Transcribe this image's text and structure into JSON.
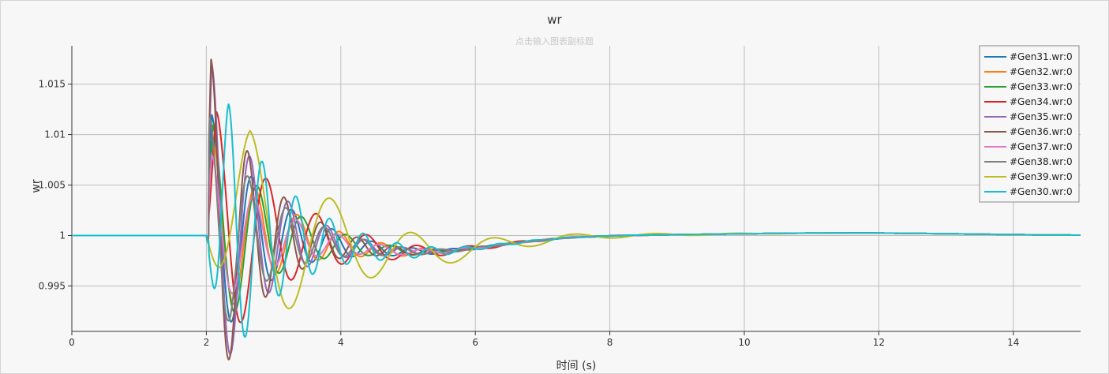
{
  "colors": [
    "#1f77b4",
    "#ff7f0e",
    "#2ca02c",
    "#d62728",
    "#9467bd",
    "#8c564b",
    "#e377c2",
    "#7f7f7f",
    "#bcbd22",
    "#17becf"
  ],
  "chart_data": {
    "type": "line",
    "title": "wr",
    "subtitle": "点击输入图表副标题",
    "xlabel": "时间 (s)",
    "ylabel": "wr",
    "xlim": [
      0,
      15
    ],
    "ylim": [
      0.9905,
      1.0188
    ],
    "xticks": [
      0,
      2,
      4,
      6,
      8,
      10,
      12,
      14
    ],
    "yticks": [
      0.995,
      1,
      1.005,
      1.01,
      1.015
    ],
    "ytick_labels": [
      "0.995",
      "1",
      "1.005",
      "1.01",
      "1.015"
    ],
    "grid": true,
    "legend_position": "top-right",
    "fault_time": 2.0,
    "series": [
      {
        "name": "#Gen31.wr:0",
        "peak_t": 2.08,
        "peak_v": 1.012,
        "omega": 10.5,
        "tau": 0.85
      },
      {
        "name": "#Gen32.wr:0",
        "peak_t": 2.1,
        "peak_v": 1.0093,
        "omega": 10.0,
        "tau": 0.95
      },
      {
        "name": "#Gen33.wr:0",
        "peak_t": 2.1,
        "peak_v": 1.011,
        "omega": 9.5,
        "tau": 0.85
      },
      {
        "name": "#Gen34.wr:0",
        "peak_t": 2.15,
        "peak_v": 1.0123,
        "omega": 8.4,
        "tau": 1.0
      },
      {
        "name": "#Gen35.wr:0",
        "peak_t": 2.08,
        "peak_v": 1.017,
        "omega": 11.0,
        "tau": 0.75
      },
      {
        "name": "#Gen36.wr:0",
        "peak_t": 2.07,
        "peak_v": 1.0175,
        "omega": 11.5,
        "tau": 0.75
      },
      {
        "name": "#Gen37.wr:0",
        "peak_t": 2.08,
        "peak_v": 1.008,
        "omega": 10.0,
        "tau": 0.9
      },
      {
        "name": "#Gen38.wr:0",
        "peak_t": 2.05,
        "peak_v": 1.0117,
        "omega": 11.0,
        "tau": 0.85
      },
      {
        "name": "#Gen39.wr:0",
        "peak_t": 2.65,
        "peak_v": 1.0105,
        "omega": 5.2,
        "tau": 1.4
      },
      {
        "name": "#Gen30.wr:0",
        "peak_t": 2.33,
        "peak_v": 1.0131,
        "omega": 12.5,
        "tau": 0.9
      }
    ]
  }
}
